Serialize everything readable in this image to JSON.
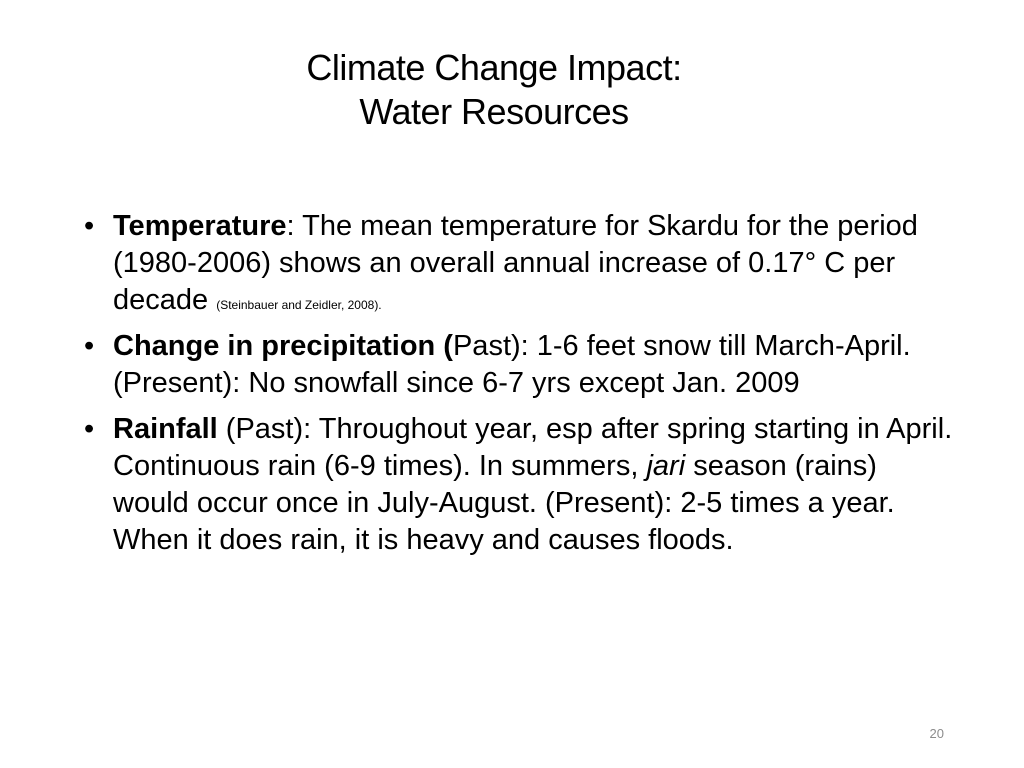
{
  "slide": {
    "title_line1": "Climate Change Impact:",
    "title_line2": "Water Resources",
    "bullet_glyph": "•",
    "bullets": [
      {
        "label": "Temperature",
        "text": ": The mean temperature for Skardu for the period (1980-2006) shows an overall annual increase of 0.17° C per decade ",
        "citation": "(Steinbauer and Zeidler, 2008)."
      },
      {
        "label": "Change in precipitation (",
        "text": "Past): 1-6 feet snow till March-April. (Present): No snowfall since 6-7 yrs except Jan. 2009"
      },
      {
        "label": "Rainfall",
        "text_before": " (Past): Throughout year, esp after spring starting in April. Continuous rain (6-9 times). In summers, ",
        "italic": "jari",
        "text_after": " season (rains) would occur once in July-August. (Present): 2-5 times a year. When it does rain, it is heavy and causes floods."
      }
    ],
    "page_number": "20"
  }
}
